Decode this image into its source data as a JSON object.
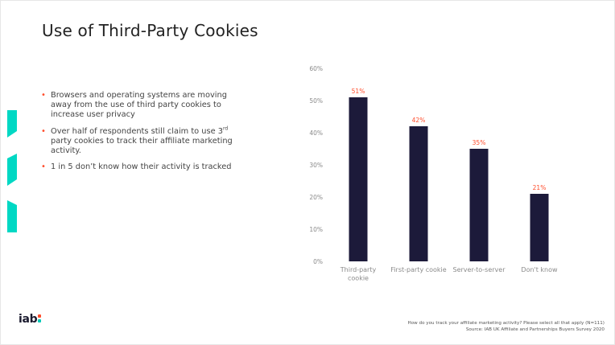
{
  "slide": {
    "title": "Use of Third-Party Cookies",
    "bullets": [
      {
        "text": "Browsers and operating systems are moving away from the use of third party cookies to increase user privacy"
      },
      {
        "text_before_sup": "Over half of respondents still claim to use 3",
        "sup": "rd",
        "text_after_sup": " party cookies to track their affiliate marketing activity."
      },
      {
        "text": "1 in 5 don’t know how their activity is tracked"
      }
    ],
    "logo": {
      "text": "iab",
      "colon_colors": [
        "#ff4c2b",
        "#00c9b7"
      ]
    },
    "source": {
      "line1": "How do you track your affiliate marketing activity? Please select all that apply (N=111)",
      "line2": "Source: IAB UK Affiliate and Partnerships Buyers Survey 2020"
    }
  },
  "colors": {
    "bar": "#1c1a3a",
    "data_label": "#ff4c2b",
    "accent": "#00d8c4",
    "title": "#222222",
    "axis_text": "#8a8a8a"
  },
  "chart_data": {
    "type": "bar",
    "categories": [
      [
        "Third-party",
        "cookie"
      ],
      [
        "First-party cookie"
      ],
      [
        "Server-to-server"
      ],
      [
        "Don't know"
      ]
    ],
    "values": [
      51,
      42,
      35,
      21
    ],
    "data_labels": [
      "51%",
      "42%",
      "35%",
      "21%"
    ],
    "ylim": [
      0,
      60
    ],
    "yticks": [
      0,
      10,
      20,
      30,
      40,
      50,
      60
    ],
    "ytick_labels": [
      "0%",
      "10%",
      "20%",
      "30%",
      "40%",
      "50%",
      "60%"
    ],
    "grid": false,
    "legend": "none",
    "title": "",
    "xlabel": "",
    "ylabel": ""
  }
}
